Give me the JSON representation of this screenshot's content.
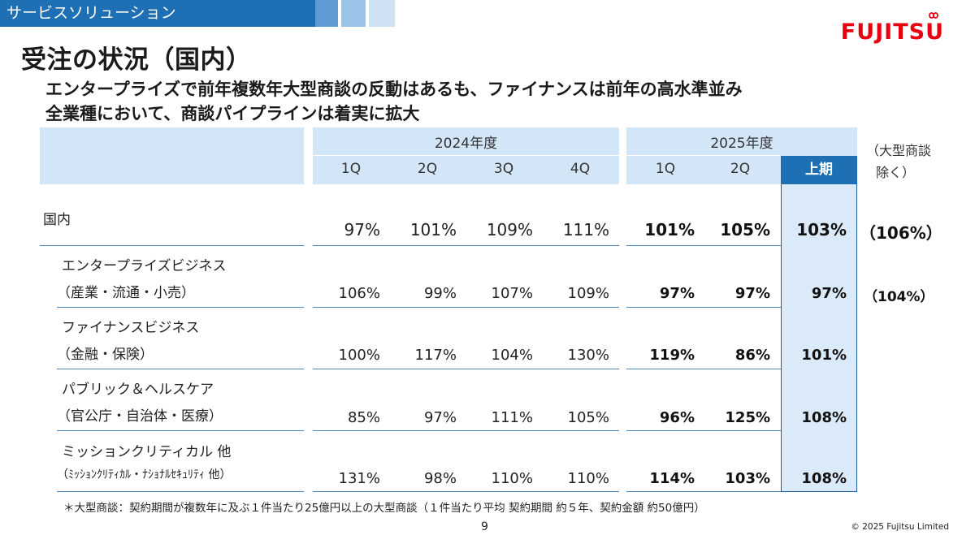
{
  "header": {
    "section": "サービスソリューション",
    "logo_text": "FUJITSU",
    "title": "受注の状況（国内）",
    "subtitle_lines": [
      "エンタープライズで前年複数年大型商談の反動はあるも、ファイナンスは前年の高水準並み",
      "全業種において、商談パイプラインは着実に拡大"
    ]
  },
  "table": {
    "year_2024": "2024年度",
    "year_2025": "2025年度",
    "quarters_2024": [
      "1Q",
      "2Q",
      "3Q",
      "4Q"
    ],
    "quarters_2025": [
      "1Q",
      "2Q"
    ],
    "half_label": "上期",
    "side_note_lines": [
      "（大型商談",
      "除く）"
    ],
    "rows": [
      {
        "label1": "国内",
        "label2": "",
        "values": [
          "97%",
          "101%",
          "109%",
          "111%",
          "101%",
          "105%",
          "103%"
        ],
        "extra": "（106%）"
      },
      {
        "label1": "エンタープライズビジネス",
        "label2": "（産業・流通・小売）",
        "values": [
          "106%",
          "99%",
          "107%",
          "109%",
          "97%",
          "97%",
          "97%"
        ],
        "extra": "（104%）"
      },
      {
        "label1": "ファイナンスビジネス",
        "label2": "（金融・保険）",
        "values": [
          "100%",
          "117%",
          "104%",
          "130%",
          "119%",
          "86%",
          "101%"
        ],
        "extra": ""
      },
      {
        "label1": "パブリック＆ヘルスケア",
        "label2": "（官公庁・自治体・医療）",
        "values": [
          "85%",
          "97%",
          "111%",
          "105%",
          "96%",
          "125%",
          "108%"
        ],
        "extra": ""
      },
      {
        "label1": "ミッションクリティカル 他",
        "label2": "（ﾐｯｼｮﾝｸﾘﾃｨｶﾙ・ﾅｼｮﾅﾙｾｷｭﾘﾃｨ 他）",
        "values": [
          "131%",
          "98%",
          "110%",
          "110%",
          "114%",
          "103%",
          "108%"
        ],
        "extra": ""
      }
    ]
  },
  "footer": {
    "footnote": "＊大型商談：契約期間が複数年に及ぶ１件当たり25億円以上の大型商談（１件当たり平均 契約期間 約５年、契約金額 約50億円）",
    "page_number": "9",
    "copyright": "© 2025 Fujitsu Limited"
  },
  "colors": {
    "brand_blue": "#1f6fb5",
    "header_fill": "#d3e6f8",
    "logo_red": "#e60012"
  }
}
